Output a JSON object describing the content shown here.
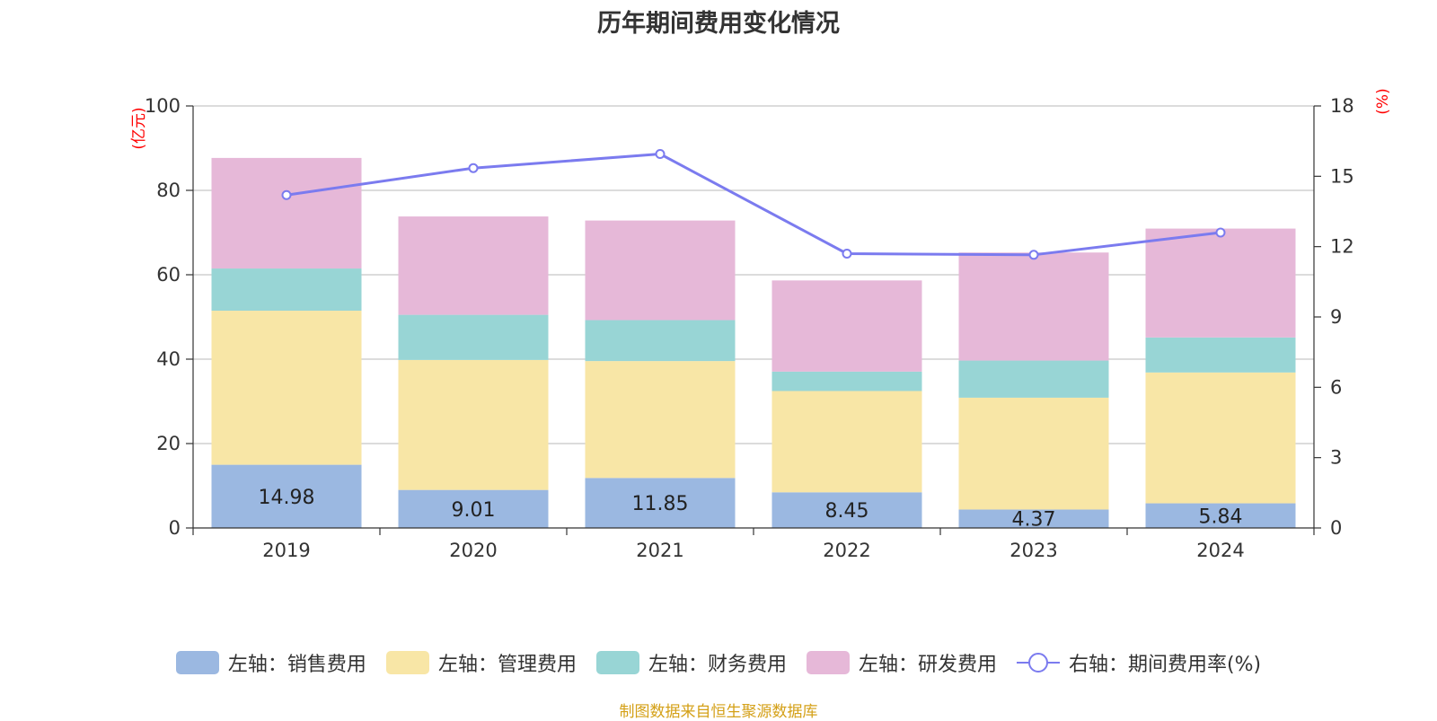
{
  "chart_data": {
    "type": "bar",
    "title": "历年期间费用变化情况",
    "categories": [
      "2019",
      "2020",
      "2021",
      "2022",
      "2023",
      "2024"
    ],
    "stacked": true,
    "series": [
      {
        "name": "左轴：销售费用",
        "axis": "left",
        "color": "#9bb8e1",
        "values": [
          14.98,
          9.01,
          11.85,
          8.45,
          4.37,
          5.84
        ]
      },
      {
        "name": "左轴：管理费用",
        "axis": "left",
        "color": "#f8e6a6",
        "values": [
          36.5,
          30.8,
          27.7,
          24.0,
          26.5,
          31.0
        ]
      },
      {
        "name": "左轴：财务费用",
        "axis": "left",
        "color": "#98d5d5",
        "values": [
          10.0,
          10.7,
          9.7,
          4.6,
          8.8,
          8.3
        ]
      },
      {
        "name": "左轴：研发费用",
        "axis": "left",
        "color": "#e6b8d8",
        "values": [
          26.2,
          23.3,
          23.6,
          21.6,
          25.6,
          25.8
        ]
      }
    ],
    "line_series": {
      "name": "右轴：期间费用率(%)",
      "axis": "right",
      "color": "#7b7bef",
      "values": [
        14.2,
        15.35,
        15.95,
        11.7,
        11.65,
        12.6
      ]
    },
    "data_labels": [
      "14.98",
      "9.01",
      "11.85",
      "8.45",
      "4.37",
      "5.84"
    ],
    "y_left": {
      "unit": "(亿元)",
      "ylim": [
        0,
        100
      ],
      "ticks": [
        "0",
        "20",
        "40",
        "60",
        "80",
        "100"
      ]
    },
    "y_right": {
      "unit": "(%)",
      "ylim": [
        0,
        18
      ],
      "ticks": [
        "0",
        "3",
        "6",
        "9",
        "12",
        "15",
        "18"
      ]
    },
    "grid": true,
    "legend": "bottom-center"
  },
  "legend_items": [
    {
      "label": "左轴：销售费用",
      "color": "#9bb8e1"
    },
    {
      "label": "左轴：管理费用",
      "color": "#f8e6a6"
    },
    {
      "label": "左轴：财务费用",
      "color": "#98d5d5"
    },
    {
      "label": "左轴：研发费用",
      "color": "#e6b8d8"
    }
  ],
  "legend_line": {
    "label": "右轴：期间费用率(%)",
    "color": "#7b7bef"
  },
  "source_text": "制图数据来自恒生聚源数据库"
}
